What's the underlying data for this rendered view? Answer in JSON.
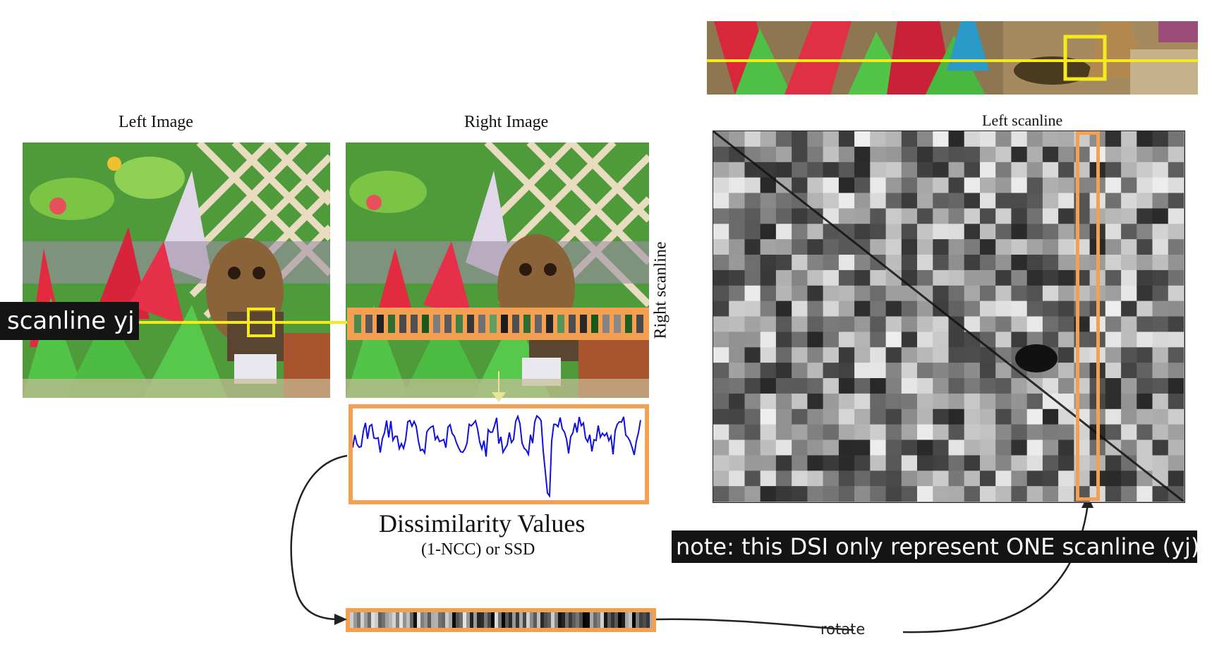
{
  "labels": {
    "left_image": "Left Image",
    "right_image": "Right Image",
    "left_scanline": "Left scanline",
    "right_scanline": "Right scanline",
    "scanline": "scanline yj",
    "dissimilarity_title": "Dissimilarity Values",
    "dissimilarity_subtitle": "(1-NCC) or SSD",
    "note": "note: this DSI only represent ONE scanline (yj)",
    "rotate": "rotate"
  },
  "colors": {
    "highlight_orange": "#f4a052",
    "scanline_yellow": "#f5ea1c",
    "curve_blue": "#1010e0",
    "label_bg": "#141414",
    "arrow": "#222222"
  }
}
